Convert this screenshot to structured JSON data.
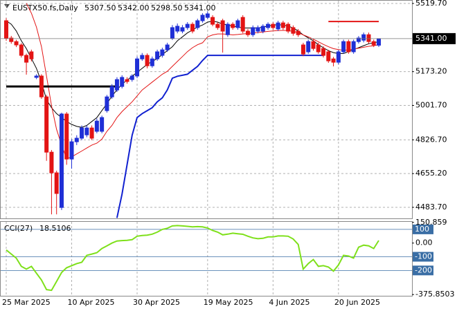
{
  "chart_data": [
    {
      "type": "candlestick",
      "title": "EUSTX50.fs,Daily",
      "ohlc_labels": [
        "5307.50",
        "5342.00",
        "5298.50",
        "5341.00"
      ],
      "categories": [
        "25 Mar 2025",
        null,
        null,
        null,
        null,
        null,
        null,
        null,
        null,
        null,
        null,
        null,
        null,
        "10 Apr 2025",
        null,
        null,
        null,
        null,
        null,
        null,
        null,
        null,
        null,
        null,
        null,
        null,
        "30 Apr 2025",
        null,
        null,
        null,
        null,
        null,
        null,
        null,
        null,
        null,
        null,
        null,
        null,
        null,
        "19 May 2025",
        null,
        null,
        null,
        null,
        null,
        null,
        null,
        null,
        null,
        null,
        null,
        null,
        "4 Jun 2025",
        null,
        null,
        null,
        null,
        null,
        null,
        null,
        null,
        null,
        null,
        null,
        null,
        "20 Jun 2025",
        null,
        null,
        null,
        null,
        null,
        null,
        null,
        null
      ],
      "open": [
        5432,
        5344,
        5326,
        5309,
        5256,
        5274,
        5144,
        5151,
        5045,
        4764,
        4659,
        4483,
        4958,
        4729,
        4817,
        4835,
        4852,
        4887,
        4870,
        4870,
        4975,
        5045,
        5080,
        5098,
        5133,
        5133,
        5151,
        5238,
        5256,
        5203,
        5238,
        5256,
        5284,
        5344,
        5379,
        5379,
        5397,
        5414,
        5397,
        5432,
        5449,
        5449,
        5414,
        5432,
        5361,
        5414,
        5397,
        5449,
        5379,
        5361,
        5379,
        5379,
        5397,
        5414,
        5390,
        5421,
        5414,
        5397,
        5379,
        5309,
        5274,
        5326,
        5309,
        5291,
        5274,
        5238,
        5221,
        5274,
        5326,
        5274,
        5326,
        5333,
        5361,
        5326,
        5307.5
      ],
      "high": [
        5445,
        5355,
        5335,
        5318,
        5265,
        5285,
        5160,
        5160,
        5055,
        4775,
        4670,
        4965,
        4968,
        4830,
        4850,
        4900,
        4900,
        4900,
        4935,
        4950,
        5055,
        5110,
        5145,
        5155,
        5145,
        5160,
        5250,
        5268,
        5266,
        5250,
        5285,
        5295,
        5320,
        5410,
        5418,
        5410,
        5425,
        5424,
        5442,
        5470,
        5480,
        5460,
        5424,
        5442,
        5424,
        5424,
        5442,
        5460,
        5390,
        5408,
        5408,
        5414,
        5424,
        5424,
        5432,
        5432,
        5424,
        5408,
        5390,
        5320,
        5336,
        5336,
        5320,
        5302,
        5284,
        5248,
        5284,
        5336,
        5336,
        5336,
        5354,
        5372,
        5372,
        5336,
        5342
      ],
      "low": [
        5330,
        5315,
        5298,
        5245,
        5158,
        5225,
        5135,
        5035,
        4720,
        4448,
        4448,
        4470,
        4700,
        4680,
        4800,
        4825,
        4840,
        4825,
        4860,
        4860,
        4965,
        5035,
        5070,
        5088,
        5112,
        5122,
        5140,
        5228,
        5190,
        5193,
        5228,
        5245,
        5274,
        5334,
        5368,
        5368,
        5386,
        5368,
        5386,
        5422,
        5440,
        5404,
        5386,
        5270,
        5350,
        5386,
        5386,
        5368,
        5350,
        5350,
        5368,
        5368,
        5386,
        5386,
        5380,
        5386,
        5368,
        5356,
        5350,
        5252,
        5264,
        5280,
        5264,
        5245,
        5218,
        5200,
        5210,
        5264,
        5264,
        5264,
        5316,
        5322,
        5316,
        5298,
        5298.5
      ],
      "close": [
        5344,
        5326,
        5309,
        5256,
        5221,
        5238,
        5151,
        5045,
        4764,
        4659,
        4554,
        4958,
        4729,
        4817,
        4835,
        4887,
        4887,
        4835,
        4922,
        4940,
        5045,
        5098,
        5133,
        5144,
        5123,
        5151,
        5238,
        5256,
        5203,
        5238,
        5274,
        5284,
        5309,
        5397,
        5404,
        5397,
        5414,
        5379,
        5432,
        5460,
        5467,
        5414,
        5397,
        5379,
        5414,
        5397,
        5432,
        5379,
        5361,
        5397,
        5397,
        5404,
        5414,
        5397,
        5421,
        5397,
        5379,
        5368,
        5361,
        5263,
        5326,
        5291,
        5274,
        5256,
        5228,
        5221,
        5274,
        5326,
        5274,
        5326,
        5344,
        5361,
        5326,
        5309,
        5341
      ],
      "up_color": "#1f2fd6",
      "down_color": "#e31414",
      "series": [
        {
          "color": "#000000",
          "width": 1,
          "values": [
            5432,
            5414,
            5380,
            5330,
            5290,
            5240,
            5190,
            5120,
            5030,
            4990,
            4960,
            4940,
            4920,
            4905,
            4895,
            4890,
            4900,
            4920,
            4940,
            4975,
            5010,
            5050,
            5080,
            5110,
            5130,
            5150,
            5170,
            5190,
            5210,
            5225,
            5240,
            5260,
            5280,
            5300,
            5330,
            5350,
            5370,
            5385,
            5400,
            5410,
            5425,
            5430,
            5425,
            5415,
            5410,
            5405,
            5400,
            5395,
            5395,
            5395,
            5395,
            5400,
            5405,
            5410,
            5412,
            5410,
            5405,
            5395,
            5380,
            5360,
            5345,
            5330,
            5310,
            5295,
            5280,
            5270,
            5265,
            5265,
            5275,
            5285,
            5295,
            5305,
            5315,
            5320,
            5325
          ]
        },
        {
          "color": "#e31414",
          "width": 1,
          "values": [
            null,
            null,
            null,
            null,
            5520,
            5470,
            5400,
            5300,
            5150,
            5000,
            4880,
            4800,
            4730,
            4740,
            4755,
            4770,
            4785,
            4800,
            4810,
            4830,
            4870,
            4900,
            4940,
            4970,
            4995,
            5020,
            5050,
            5080,
            5100,
            5120,
            5140,
            5160,
            5175,
            5200,
            5225,
            5250,
            5275,
            5295,
            5310,
            5320,
            5350,
            5360,
            5365,
            5365,
            5363,
            5360,
            5362,
            5365,
            5367,
            5370,
            5372,
            5375,
            5378,
            5380,
            5382,
            5383,
            5382,
            5378,
            5372,
            5360,
            5350,
            5338,
            5325,
            5312,
            5300,
            5290,
            5285,
            5282,
            5284,
            5288,
            5292,
            5297,
            5302,
            5305,
            5310
          ]
        },
        {
          "color": "#1020d0",
          "width": 2,
          "values": [
            null,
            null,
            null,
            null,
            null,
            null,
            null,
            null,
            null,
            null,
            null,
            null,
            null,
            null,
            null,
            null,
            null,
            null,
            null,
            null,
            null,
            null,
            4430,
            4550,
            4700,
            4850,
            4940,
            4960,
            4975,
            4990,
            5020,
            5040,
            5080,
            5140,
            5150,
            5155,
            5160,
            5180,
            5200,
            5230,
            5256,
            5256,
            5256,
            5256,
            5256,
            5256,
            5256,
            5256,
            5256,
            5256,
            5256,
            5256,
            5256,
            5256,
            5256,
            5256,
            5256,
            5256,
            5256,
            5256,
            5256,
            5256,
            5256,
            5256,
            null,
            null,
            null,
            null,
            null,
            null,
            null,
            null,
            null,
            null,
            null
          ]
        },
        {
          "color": "#000000",
          "width": 3,
          "values": [
            5098,
            5098,
            5098,
            5098,
            5098,
            5098,
            5098,
            5098,
            5098,
            5098,
            5098,
            5098,
            5098,
            5098,
            5098,
            5098,
            5098,
            5098,
            5098,
            5098,
            5098,
            5098,
            5098,
            null,
            null,
            null,
            null,
            null,
            null,
            null,
            null,
            null,
            null,
            null,
            null,
            null,
            null,
            null,
            null,
            null,
            null,
            null,
            null,
            null,
            null,
            null,
            null,
            null,
            null,
            null,
            null,
            null,
            null,
            null,
            null,
            null,
            null,
            null,
            null,
            null,
            null,
            null,
            null,
            null,
            null,
            null,
            null,
            null,
            null,
            null,
            null,
            null,
            null,
            null,
            null
          ]
        },
        {
          "color": "#e31414",
          "width": 2,
          "values": [
            null,
            null,
            null,
            null,
            null,
            null,
            null,
            null,
            null,
            null,
            null,
            null,
            null,
            null,
            null,
            null,
            null,
            null,
            null,
            null,
            null,
            null,
            null,
            null,
            null,
            null,
            null,
            null,
            null,
            null,
            null,
            null,
            null,
            null,
            null,
            null,
            null,
            null,
            null,
            null,
            null,
            null,
            null,
            null,
            null,
            null,
            null,
            null,
            null,
            null,
            null,
            null,
            null,
            null,
            null,
            null,
            null,
            null,
            null,
            null,
            null,
            null,
            null,
            null,
            5428,
            5428,
            5428,
            5428,
            5428,
            5428,
            5428,
            5428,
            5428,
            5428,
            5428
          ]
        }
      ],
      "price_line": {
        "value": 5341,
        "label": "5341.00"
      },
      "ylim": [
        4427.5,
        5537.3
      ],
      "yticks": [
        {
          "value": 5519.7,
          "label": "5519.70"
        },
        {
          "value": 5173.2,
          "label": "5173.20"
        },
        {
          "value": 5001.7,
          "label": "5001.70"
        },
        {
          "value": 4826.7,
          "label": "4826.70"
        },
        {
          "value": 4655.2,
          "label": "4655.20"
        },
        {
          "value": 4483.7,
          "label": "4483.70"
        }
      ],
      "grid": true
    },
    {
      "type": "line",
      "title": "CCI(27)",
      "last_value": 18.5106,
      "color": "#7ee01a",
      "values": [
        -50,
        -80,
        -110,
        -170,
        -190,
        -170,
        -220,
        -270,
        -340,
        -345,
        -280,
        -215,
        -180,
        -165,
        -150,
        -140,
        -90,
        -80,
        -70,
        -40,
        -20,
        0,
        15,
        18,
        20,
        25,
        50,
        55,
        58,
        65,
        80,
        100,
        108,
        125,
        128,
        125,
        122,
        118,
        120,
        118,
        110,
        92,
        80,
        60,
        65,
        72,
        68,
        64,
        50,
        38,
        32,
        35,
        45,
        45,
        52,
        52,
        50,
        30,
        -10,
        -190,
        -150,
        -120,
        -170,
        -165,
        -175,
        -205,
        -160,
        -90,
        -95,
        -110,
        -30,
        -15,
        -20,
        -40,
        18.5106
      ],
      "levels": [
        100,
        -100,
        -200
      ],
      "level_color": "#3a6ea5",
      "ylim": [
        -385,
        155
      ],
      "yticks": [
        150.859,
        {
          "value": 0,
          "label": "0.00"
        },
        -375.8503
      ]
    }
  ]
}
